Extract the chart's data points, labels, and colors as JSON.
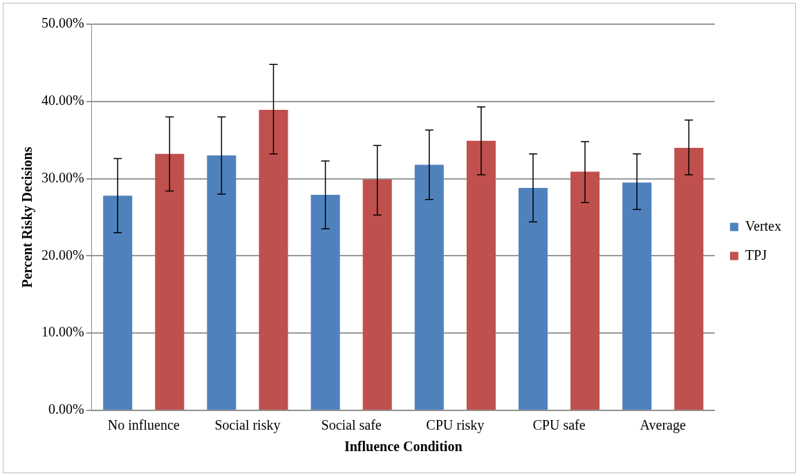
{
  "chart_data": {
    "type": "bar",
    "xlabel": "Influence Condition",
    "ylabel": "Percent Risky Decisions",
    "categories": [
      "No influence",
      "Social risky",
      "Social safe",
      "CPU risky",
      "CPU safe",
      "Average"
    ],
    "series": [
      {
        "name": "Vertex",
        "color": "#4f81bd",
        "values": [
          27.8,
          33.0,
          27.9,
          31.8,
          28.8,
          29.5
        ],
        "errors": [
          [
            23.0,
            32.6
          ],
          [
            28.0,
            38.0
          ],
          [
            23.5,
            32.3
          ],
          [
            27.3,
            36.3
          ],
          [
            24.4,
            33.2
          ],
          [
            26.0,
            33.2
          ]
        ]
      },
      {
        "name": "TPJ",
        "color": "#c0504d",
        "values": [
          33.2,
          38.9,
          29.9,
          34.9,
          30.9,
          34.0
        ],
        "errors": [
          [
            28.4,
            38.0
          ],
          [
            33.2,
            44.8
          ],
          [
            25.3,
            34.3
          ],
          [
            30.5,
            39.3
          ],
          [
            26.9,
            34.8
          ],
          [
            30.5,
            37.6
          ]
        ]
      }
    ],
    "ylim": [
      0,
      50
    ],
    "yticks": [
      {
        "value": 0,
        "label": "0.00%"
      },
      {
        "value": 10,
        "label": "10.00%"
      },
      {
        "value": 20,
        "label": "20.00%"
      },
      {
        "value": 30,
        "label": "30.00%"
      },
      {
        "value": 40,
        "label": "40.00%"
      },
      {
        "value": 50,
        "label": "50.00%"
      }
    ],
    "grid": "y",
    "legend": "right"
  }
}
